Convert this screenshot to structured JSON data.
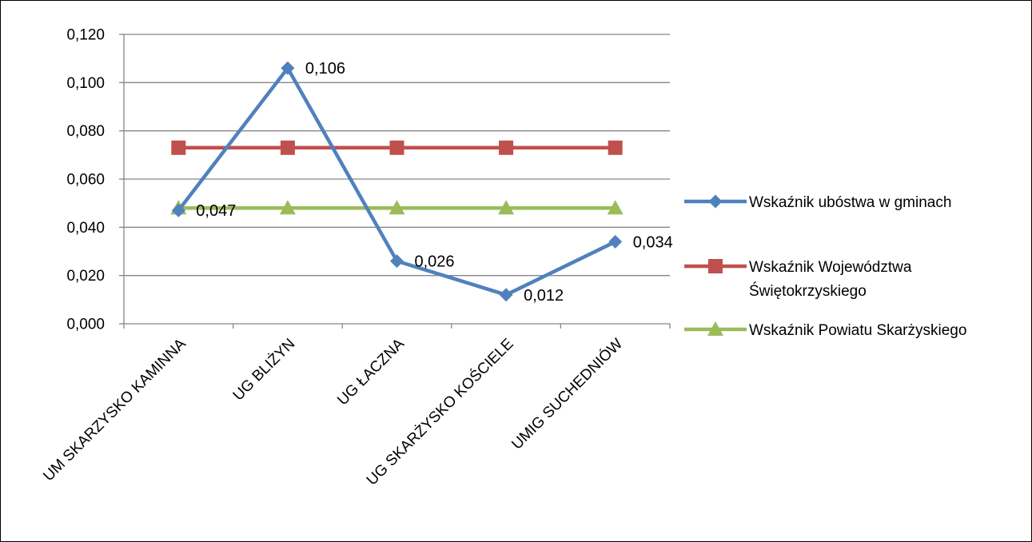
{
  "chart_data": {
    "type": "line",
    "title": "",
    "xlabel": "",
    "ylabel": "",
    "categories": [
      "UM SKARZYSKO KAMINNA",
      "UG BLIŻYN",
      "UG ŁACZNA",
      "UG SKARŻYSKO KOŚCIELE",
      "UMIG SUCHEDNIÓW"
    ],
    "ylim": [
      0,
      0.12
    ],
    "yticks": [
      "0,000",
      "0,020",
      "0,040",
      "0,060",
      "0,080",
      "0,100",
      "0,120"
    ],
    "grid": true,
    "legend_position": "right",
    "series": [
      {
        "name": "Wskaźnik ubóstwa w gminach",
        "legend_lines": [
          "Wskaźnik ubóstwa w gminach"
        ],
        "values": [
          0.047,
          0.106,
          0.026,
          0.012,
          0.034
        ],
        "data_labels": [
          "0,047",
          "0,106",
          "0,026",
          "0,012",
          "0,034"
        ],
        "color": "#4f81bd",
        "marker": "diamond"
      },
      {
        "name": "Wskaźnik Województwa Świętokrzyskiego",
        "legend_lines": [
          "Wskaźnik Województwa",
          "Świętokrzyskiego"
        ],
        "values": [
          0.073,
          0.073,
          0.073,
          0.073,
          0.073
        ],
        "color": "#c0504d",
        "marker": "square"
      },
      {
        "name": "Wskaźnik Powiatu Skarżyskiego",
        "legend_lines": [
          "Wskaźnik Powiatu Skarżyskiego"
        ],
        "values": [
          0.048,
          0.048,
          0.048,
          0.048,
          0.048
        ],
        "color": "#9bbb59",
        "marker": "triangle"
      }
    ]
  }
}
